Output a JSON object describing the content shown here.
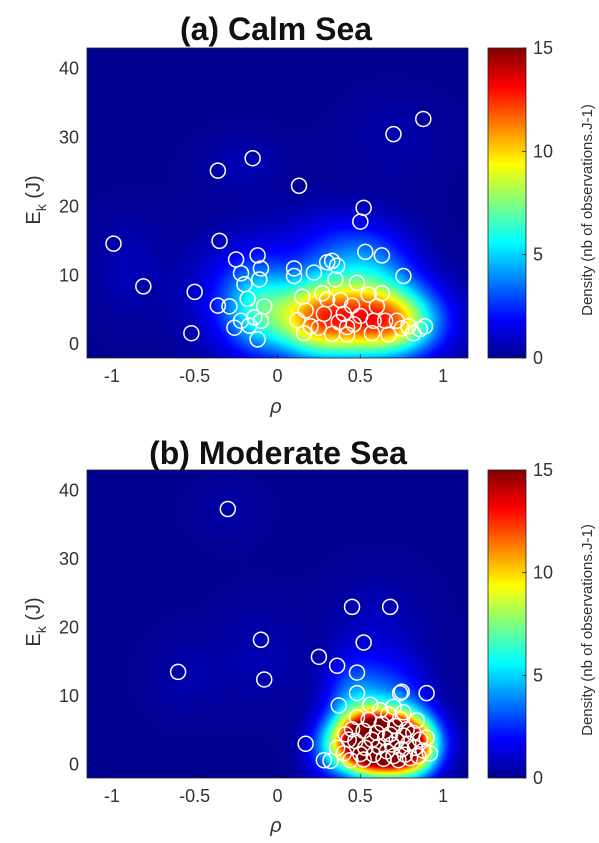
{
  "chart_data": [
    {
      "type": "scatter",
      "title": "(a) Calm Sea",
      "xlabel": "ρ",
      "ylabel_main": "E",
      "ylabel_sub": "k",
      "ylabel_unit": " (J)",
      "xlim": [
        -1.15,
        1.15
      ],
      "ylim": [
        -2,
        43
      ],
      "xticks": [
        -1,
        -0.5,
        0,
        0.5,
        1
      ],
      "xtick_labels": [
        "-1",
        "-0.5",
        "0",
        "0.5",
        "1"
      ],
      "yticks": [
        0,
        10,
        20,
        30,
        40
      ],
      "ytick_labels": [
        "0",
        "10",
        "20",
        "30",
        "40"
      ],
      "colorbar": {
        "label": "Density (nb of observations.J-1)",
        "range": [
          0,
          15
        ],
        "ticks": [
          0,
          5,
          10,
          15
        ],
        "tick_labels": [
          "0",
          "5",
          "10",
          "15"
        ]
      },
      "background_color": "#00008f",
      "marker_color": "#ffffff",
      "points": [
        [
          -0.99,
          14.6
        ],
        [
          -0.81,
          8.4
        ],
        [
          -0.5,
          7.6
        ],
        [
          -0.52,
          1.6
        ],
        [
          -0.36,
          25.2
        ],
        [
          -0.35,
          15
        ],
        [
          -0.36,
          5.6
        ],
        [
          -0.29,
          5.5
        ],
        [
          -0.25,
          12.3
        ],
        [
          -0.22,
          10.3
        ],
        [
          -0.2,
          8.7
        ],
        [
          -0.18,
          6.6
        ],
        [
          -0.15,
          27
        ],
        [
          -0.12,
          12.9
        ],
        [
          -0.1,
          11
        ],
        [
          -0.11,
          9.4
        ],
        [
          -0.08,
          5.5
        ],
        [
          -0.1,
          3.4
        ],
        [
          -0.12,
          0.7
        ],
        [
          -0.17,
          2.7
        ],
        [
          -0.22,
          3.4
        ],
        [
          -0.26,
          2.4
        ],
        [
          -0.14,
          3.9
        ],
        [
          0.1,
          11
        ],
        [
          0.1,
          9.9
        ],
        [
          0.13,
          23
        ],
        [
          0.15,
          6.9
        ],
        [
          0.17,
          4.9
        ],
        [
          0.12,
          3.5
        ],
        [
          0.2,
          2.6
        ],
        [
          0.16,
          1.6
        ],
        [
          0.25,
          2.4
        ],
        [
          0.27,
          7.4
        ],
        [
          0.3,
          11.9
        ],
        [
          0.33,
          12.1
        ],
        [
          0.36,
          11.4
        ],
        [
          0.35,
          9.4
        ],
        [
          0.3,
          6.5
        ],
        [
          0.38,
          6.4
        ],
        [
          0.4,
          4.4
        ],
        [
          0.37,
          3.2
        ],
        [
          0.42,
          2.5
        ],
        [
          0.42,
          1.4
        ],
        [
          0.33,
          1.5
        ],
        [
          0.45,
          5.6
        ],
        [
          0.5,
          4.1
        ],
        [
          0.5,
          17.8
        ],
        [
          0.52,
          19.8
        ],
        [
          0.53,
          13.4
        ],
        [
          0.55,
          7.2
        ],
        [
          0.58,
          3.4
        ],
        [
          0.57,
          1.6
        ],
        [
          0.6,
          5.5
        ],
        [
          0.63,
          12.9
        ],
        [
          0.63,
          7.4
        ],
        [
          0.65,
          3.4
        ],
        [
          0.67,
          1.4
        ],
        [
          0.7,
          30.5
        ],
        [
          0.72,
          3.4
        ],
        [
          0.75,
          2.3
        ],
        [
          0.76,
          9.9
        ],
        [
          0.79,
          2.6
        ],
        [
          0.82,
          1.6
        ],
        [
          0.86,
          2.2
        ],
        [
          0.88,
          32.7
        ],
        [
          0.89,
          2.6
        ],
        [
          0.48,
          8.9
        ],
        [
          0.46,
          2.9
        ],
        [
          0.28,
          4.4
        ],
        [
          0.22,
          10.4
        ]
      ],
      "density_blobs": [
        [
          0.47,
          3.5,
          0.3,
          4.0,
          10
        ],
        [
          0.2,
          4.0,
          0.16,
          4.0,
          4.5
        ],
        [
          -0.12,
          5.5,
          0.14,
          4.5,
          4
        ],
        [
          0.72,
          3.0,
          0.16,
          3.0,
          4
        ],
        [
          0.55,
          10.5,
          0.2,
          4.5,
          3
        ],
        [
          -0.3,
          7.0,
          0.2,
          6.0,
          1.5
        ],
        [
          0.3,
          14.0,
          0.25,
          4.0,
          1.5
        ],
        [
          -0.9,
          11.0,
          0.15,
          5.0,
          0.7
        ],
        [
          0.7,
          30.0,
          0.2,
          4.0,
          0.5
        ],
        [
          -0.2,
          26.0,
          0.18,
          3.0,
          0.6
        ]
      ]
    },
    {
      "type": "scatter",
      "title": "(b) Moderate Sea",
      "xlabel": "ρ",
      "ylabel_main": "E",
      "ylabel_sub": "k",
      "ylabel_unit": " (J)",
      "xlim": [
        -1.15,
        1.15
      ],
      "ylim": [
        -2,
        43
      ],
      "xticks": [
        -1,
        -0.5,
        0,
        0.5,
        1
      ],
      "xtick_labels": [
        "-1",
        "-0.5",
        "0",
        "0.5",
        "1"
      ],
      "yticks": [
        0,
        10,
        20,
        30,
        40
      ],
      "ytick_labels": [
        "0",
        "10",
        "20",
        "30",
        "40"
      ],
      "colorbar": {
        "label": "Density (nb of observations.J-1)",
        "range": [
          0,
          15
        ],
        "ticks": [
          0,
          5,
          10,
          15
        ],
        "tick_labels": [
          "0",
          "5",
          "10",
          "15"
        ]
      },
      "background_color": "#00008f",
      "marker_color": "#ffffff",
      "points": [
        [
          -0.3,
          37.3
        ],
        [
          -0.6,
          13.5
        ],
        [
          -0.1,
          18.2
        ],
        [
          -0.08,
          12.4
        ],
        [
          0.17,
          3
        ],
        [
          0.25,
          15.7
        ],
        [
          0.28,
          0.6
        ],
        [
          0.32,
          0.5
        ],
        [
          0.36,
          14.4
        ],
        [
          0.37,
          8.6
        ],
        [
          0.45,
          23
        ],
        [
          0.48,
          13.4
        ],
        [
          0.48,
          10.4
        ],
        [
          0.52,
          17.8
        ],
        [
          0.68,
          23
        ],
        [
          0.74,
          10.4
        ],
        [
          0.75,
          10.6
        ],
        [
          0.9,
          10.4
        ],
        [
          0.36,
          2.4
        ],
        [
          0.4,
          1.6
        ],
        [
          0.43,
          3.6
        ],
        [
          0.45,
          5.1
        ],
        [
          0.47,
          3.4
        ],
        [
          0.5,
          1.5
        ],
        [
          0.52,
          4.9
        ],
        [
          0.53,
          2.4
        ],
        [
          0.55,
          6.5
        ],
        [
          0.57,
          3.6
        ],
        [
          0.58,
          1.4
        ],
        [
          0.6,
          4.6
        ],
        [
          0.61,
          2.6
        ],
        [
          0.63,
          5.9
        ],
        [
          0.64,
          0.8
        ],
        [
          0.65,
          3.9
        ],
        [
          0.66,
          1.9
        ],
        [
          0.67,
          7.3
        ],
        [
          0.68,
          4.4
        ],
        [
          0.69,
          2.9
        ],
        [
          0.7,
          1.2
        ],
        [
          0.71,
          5.6
        ],
        [
          0.72,
          3.5
        ],
        [
          0.73,
          0.6
        ],
        [
          0.74,
          6.6
        ],
        [
          0.75,
          2.2
        ],
        [
          0.76,
          4.2
        ],
        [
          0.77,
          1.4
        ],
        [
          0.78,
          5.1
        ],
        [
          0.79,
          3.0
        ],
        [
          0.8,
          0.9
        ],
        [
          0.82,
          4.6
        ],
        [
          0.83,
          2.4
        ],
        [
          0.85,
          1.2
        ],
        [
          0.86,
          3.6
        ],
        [
          0.88,
          2.0
        ],
        [
          0.9,
          3.9
        ],
        [
          0.92,
          1.6
        ],
        [
          0.52,
          0.7
        ],
        [
          0.44,
          0.6
        ],
        [
          0.62,
          7.9
        ],
        [
          0.7,
          8.4
        ],
        [
          0.56,
          8.7
        ],
        [
          0.76,
          7.6
        ],
        [
          0.84,
          6.4
        ],
        [
          0.48,
          6.9
        ],
        [
          0.41,
          4.4
        ]
      ],
      "density_blobs": [
        [
          0.65,
          3.0,
          0.17,
          3.0,
          22
        ],
        [
          0.5,
          3.5,
          0.12,
          3.0,
          6
        ],
        [
          0.82,
          2.5,
          0.1,
          3.0,
          5
        ],
        [
          0.45,
          10.0,
          0.12,
          4.0,
          3
        ],
        [
          0.7,
          10.0,
          0.15,
          4.0,
          2.5
        ],
        [
          0.3,
          2.0,
          0.1,
          3.0,
          2
        ],
        [
          0.6,
          20.0,
          0.2,
          5.0,
          0.8
        ],
        [
          -0.1,
          16.0,
          0.18,
          5.0,
          0.6
        ],
        [
          -0.55,
          13.0,
          0.15,
          4.0,
          0.5
        ],
        [
          -0.3,
          37.0,
          0.14,
          3.0,
          0.4
        ]
      ]
    }
  ]
}
